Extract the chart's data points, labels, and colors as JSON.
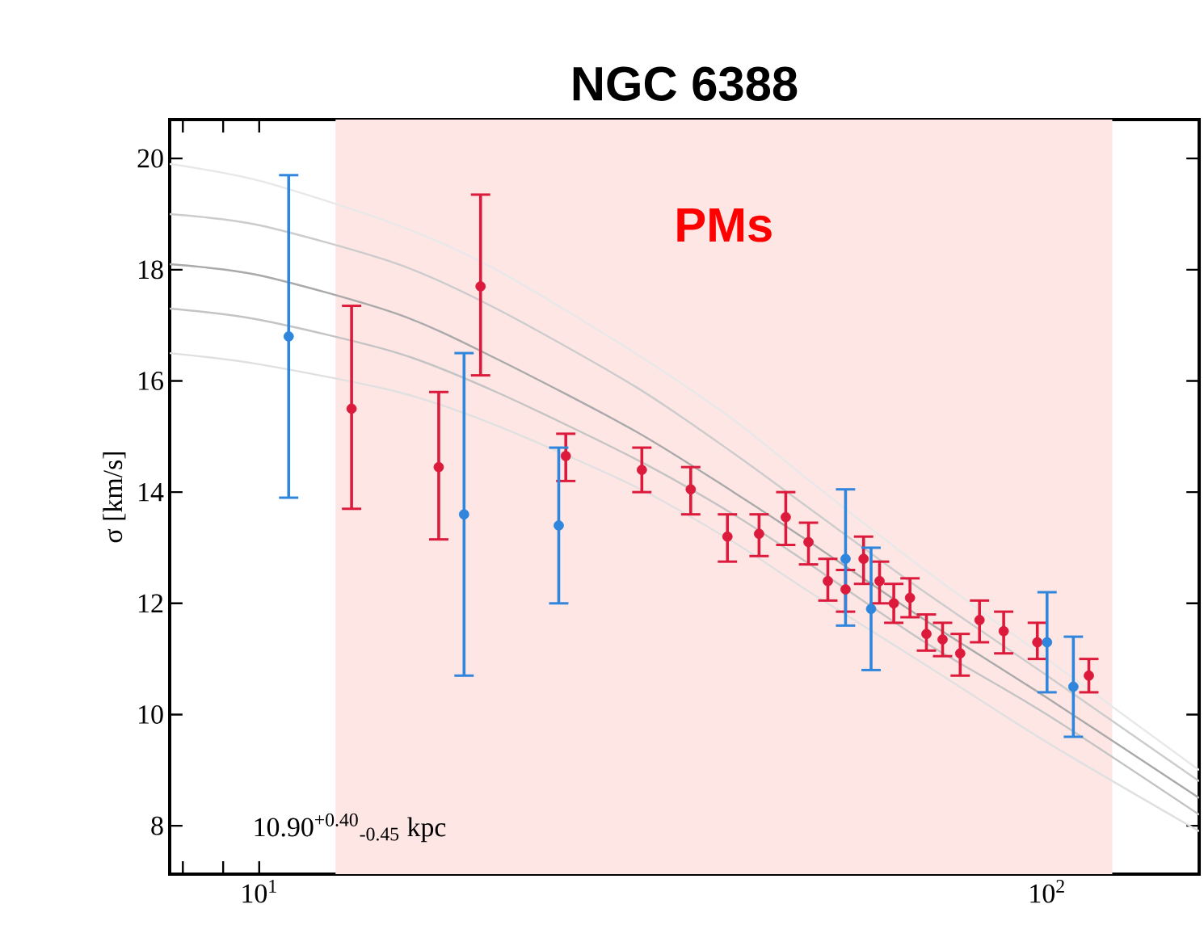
{
  "chart_data": {
    "type": "scatter",
    "title": "NGC 6388",
    "ylabel": "σ [km/s]",
    "log": "x",
    "marker": "circle",
    "grid": false,
    "xlim": [
      7.7,
      156
    ],
    "ylim": [
      7.13,
      20.7
    ],
    "xticks": [
      {
        "value": 8,
        "label": null
      },
      {
        "value": 9,
        "label": null
      },
      {
        "value": 10,
        "label": "10$^{1}$"
      },
      {
        "value": 20,
        "label": null
      },
      {
        "value": 30,
        "label": null
      },
      {
        "value": 40,
        "label": null
      },
      {
        "value": 50,
        "label": null
      },
      {
        "value": 60,
        "label": null
      },
      {
        "value": 70,
        "label": null
      },
      {
        "value": 80,
        "label": null
      },
      {
        "value": 90,
        "label": null
      },
      {
        "value": 100,
        "label": "10$^{2}$"
      }
    ],
    "yticks": [
      8,
      10,
      12,
      14,
      16,
      18,
      20
    ],
    "bands": [
      {
        "axis": "x",
        "from": 12.5,
        "to": 121,
        "label": "PMs",
        "color": "#fde6e4"
      }
    ],
    "annotations": [
      "10.90$^{+0.40}$$_{-0.45}$ kpc"
    ],
    "series": [
      {
        "type": "line",
        "marker": "none",
        "color": "#e8e8e8",
        "x": [
          7.7,
          10,
          15,
          20,
          30,
          40,
          50,
          70,
          100,
          156
        ],
        "values": [
          19.9,
          19.6,
          18.8,
          18.0,
          16.5,
          15.3,
          14.2,
          12.6,
          11.0,
          9.0
        ]
      },
      {
        "type": "line",
        "marker": "none",
        "color": "#cccccc",
        "x": [
          7.7,
          10,
          15,
          20,
          30,
          40,
          50,
          70,
          100,
          156
        ],
        "values": [
          19.0,
          18.8,
          18.1,
          17.3,
          15.9,
          14.7,
          13.7,
          12.2,
          10.7,
          8.8
        ]
      },
      {
        "type": "line",
        "marker": "none",
        "color": "#aaaaaa",
        "x": [
          7.7,
          10,
          15,
          20,
          30,
          40,
          50,
          70,
          100,
          156
        ],
        "values": [
          18.1,
          17.9,
          17.2,
          16.4,
          15.1,
          14.0,
          13.1,
          11.7,
          10.3,
          8.5
        ]
      },
      {
        "type": "line",
        "marker": "none",
        "color": "#c4c4c4",
        "x": [
          7.7,
          10,
          15,
          20,
          30,
          40,
          50,
          70,
          100,
          156
        ],
        "values": [
          17.3,
          17.1,
          16.5,
          15.8,
          14.6,
          13.6,
          12.7,
          11.3,
          10.0,
          8.2
        ]
      },
      {
        "type": "line",
        "marker": "none",
        "color": "#e0e0e0",
        "x": [
          7.7,
          10,
          15,
          20,
          30,
          40,
          50,
          70,
          100,
          156
        ],
        "values": [
          16.5,
          16.3,
          15.8,
          15.2,
          14.1,
          13.1,
          12.2,
          10.9,
          9.5,
          7.9
        ]
      },
      {
        "color": "#dc1a3c",
        "x": [
          13.1,
          16.9,
          19.1,
          24.5,
          30.6,
          35.3,
          39.3,
          43.1,
          46.6,
          49.8,
          52.7,
          55.5,
          58.5,
          61.3,
          63.9,
          67.0,
          70.3,
          73.7,
          77.6,
          82.1,
          88.1,
          97.2,
          113
        ],
        "values": [
          15.5,
          14.45,
          17.7,
          14.65,
          14.4,
          14.05,
          13.2,
          13.25,
          13.55,
          13.1,
          12.4,
          12.25,
          12.8,
          12.4,
          12.0,
          12.1,
          11.45,
          11.35,
          11.1,
          11.7,
          11.5,
          11.3,
          10.7
        ],
        "errors": [
          [
            13.7,
            17.35
          ],
          [
            13.15,
            15.8
          ],
          [
            16.1,
            19.35
          ],
          [
            14.2,
            15.05
          ],
          [
            14.0,
            14.8
          ],
          [
            13.6,
            14.45
          ],
          [
            12.75,
            13.6
          ],
          [
            12.85,
            13.6
          ],
          [
            13.05,
            14.0
          ],
          [
            12.7,
            13.45
          ],
          [
            12.05,
            12.8
          ],
          [
            11.85,
            12.6
          ],
          [
            12.35,
            13.2
          ],
          [
            12.0,
            12.75
          ],
          [
            11.65,
            12.35
          ],
          [
            11.75,
            12.45
          ],
          [
            11.15,
            11.8
          ],
          [
            11.05,
            11.65
          ],
          [
            10.7,
            11.45
          ],
          [
            11.3,
            12.05
          ],
          [
            11.1,
            11.85
          ],
          [
            11.0,
            11.65
          ],
          [
            10.4,
            11.0
          ]
        ]
      },
      {
        "color": "#2f86dc",
        "x": [
          10.9,
          18.2,
          24.0,
          55.5,
          59.8,
          100,
          108
        ],
        "values": [
          16.8,
          13.6,
          13.4,
          12.8,
          11.9,
          11.3,
          10.5
        ],
        "errors": [
          [
            13.9,
            19.7
          ],
          [
            10.7,
            16.5
          ],
          [
            12.0,
            14.8
          ],
          [
            11.6,
            14.05
          ],
          [
            10.8,
            13.0
          ],
          [
            10.4,
            12.2
          ],
          [
            9.6,
            11.4
          ]
        ]
      }
    ]
  }
}
